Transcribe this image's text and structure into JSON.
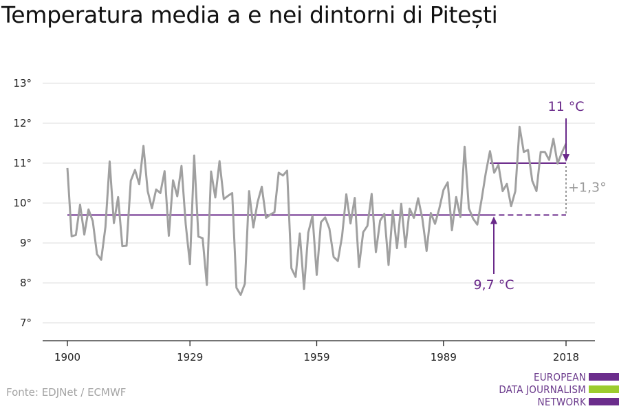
{
  "title": "Temperatura media a e nei dintorni di Pitești",
  "source": "Fonte: EDJNet / ECMWF",
  "logo": {
    "lines": [
      "EUROPEAN",
      "DATA JOURNALISM",
      "NETWORK"
    ],
    "colors": [
      "#6b2d8c",
      "#9ccc2e",
      "#6b2d8c"
    ]
  },
  "colors": {
    "line": "#a0a0a0",
    "reference": "#6a2a8a",
    "annotation_gray": "#9a9a9a",
    "grid": "#dddddd"
  },
  "chart_data": {
    "type": "line",
    "title": "Temperatura media a e nei dintorni di Pitești",
    "xlabel": "",
    "ylabel": "",
    "xlim": [
      1900,
      2018
    ],
    "ylim": [
      7,
      13
    ],
    "x_ticks": [
      1900,
      1929,
      1959,
      1989,
      2018
    ],
    "y_ticks": [
      7,
      8,
      9,
      10,
      11,
      12,
      13
    ],
    "y_tick_labels": [
      "7°",
      "8°",
      "9°",
      "10°",
      "11°",
      "12°",
      "13°"
    ],
    "grid": true,
    "x": [
      1900,
      1901,
      1902,
      1903,
      1904,
      1905,
      1906,
      1907,
      1908,
      1909,
      1910,
      1911,
      1912,
      1913,
      1914,
      1915,
      1916,
      1917,
      1918,
      1919,
      1920,
      1921,
      1922,
      1923,
      1924,
      1925,
      1926,
      1927,
      1928,
      1929,
      1930,
      1931,
      1932,
      1933,
      1934,
      1935,
      1936,
      1937,
      1938,
      1939,
      1940,
      1941,
      1942,
      1943,
      1944,
      1945,
      1946,
      1947,
      1948,
      1949,
      1950,
      1951,
      1952,
      1953,
      1954,
      1955,
      1956,
      1957,
      1958,
      1959,
      1960,
      1961,
      1962,
      1963,
      1964,
      1965,
      1966,
      1967,
      1968,
      1969,
      1970,
      1971,
      1972,
      1973,
      1974,
      1975,
      1976,
      1977,
      1978,
      1979,
      1980,
      1981,
      1982,
      1983,
      1984,
      1985,
      1986,
      1987,
      1988,
      1989,
      1990,
      1991,
      1992,
      1993,
      1994,
      1995,
      1996,
      1997,
      1998,
      1999,
      2000,
      2001,
      2002,
      2003,
      2004,
      2005,
      2006,
      2007,
      2008,
      2009,
      2010,
      2011,
      2012,
      2013,
      2014,
      2015,
      2016,
      2017,
      2018
    ],
    "series": [
      {
        "values": [
          10.88,
          9.17,
          9.2,
          9.96,
          9.21,
          9.84,
          9.55,
          8.72,
          8.58,
          9.4,
          11.04,
          9.5,
          10.15,
          8.92,
          8.93,
          10.56,
          10.83,
          10.47,
          11.43,
          10.3,
          9.87,
          10.34,
          10.25,
          10.8,
          9.18,
          10.57,
          10.17,
          10.93,
          9.47,
          8.47,
          11.19,
          9.16,
          9.12,
          7.95,
          10.79,
          10.14,
          11.05,
          10.1,
          10.18,
          10.25,
          7.88,
          7.7,
          7.98,
          10.3,
          9.39,
          10.02,
          10.41,
          9.63,
          9.71,
          9.77,
          10.76,
          10.69,
          10.81,
          8.37,
          8.15,
          9.24,
          7.85,
          9.26,
          9.68,
          8.2,
          9.52,
          9.64,
          9.36,
          8.65,
          8.55,
          9.17,
          10.22,
          9.49,
          10.13,
          8.4,
          9.27,
          9.43,
          10.23,
          8.77,
          9.56,
          9.73,
          8.45,
          9.81,
          8.87,
          9.98,
          8.9,
          9.86,
          9.63,
          10.12,
          9.61,
          8.8,
          9.75,
          9.48,
          9.86,
          10.33,
          10.52,
          9.32,
          10.15,
          9.65,
          11.41,
          9.87,
          9.61,
          9.46,
          10.08,
          10.75,
          11.3,
          10.76,
          10.96,
          10.3,
          10.48,
          9.92,
          10.3,
          11.91,
          11.28,
          11.33,
          10.56,
          10.3,
          11.28,
          11.28,
          11.08,
          11.61,
          10.99,
          11.26,
          11.49
        ]
      }
    ],
    "reference_lines": [
      {
        "value": 9.7,
        "label": "9,7 °C",
        "x_start": 1900,
        "x_end": 2018,
        "dashed_from": 2000
      },
      {
        "value": 11.0,
        "label": "11 °C",
        "x_start": 2000,
        "x_end": 2018
      }
    ],
    "difference_label": "+1,3°"
  }
}
